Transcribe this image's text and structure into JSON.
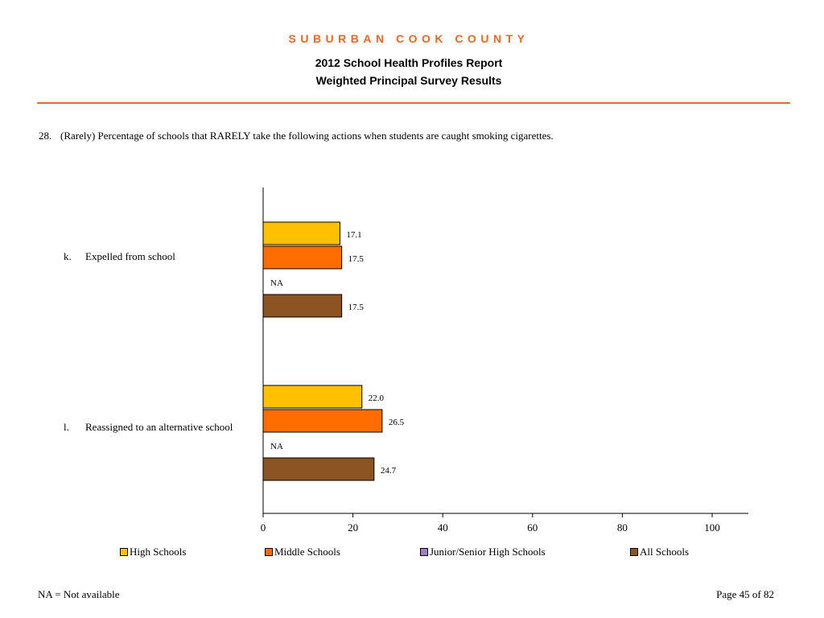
{
  "header": {
    "county": "SUBURBAN COOK COUNTY",
    "title_line1": "2012 School Health Profiles Report",
    "title_line2": "Weighted Principal Survey Results"
  },
  "question": {
    "number": "28.",
    "text": "(Rarely) Percentage of schools that RARELY take the following actions when students are caught smoking cigarettes."
  },
  "rows": [
    {
      "letter": "k.",
      "label": "Expelled from school"
    },
    {
      "letter": "l.",
      "label": "Reassigned to an alternative school"
    }
  ],
  "chart_data": {
    "type": "bar",
    "orientation": "horizontal",
    "categories": [
      "Expelled from school",
      "Reassigned to an alternative school"
    ],
    "series": [
      {
        "name": "High Schools",
        "color": "#ffc000",
        "values": [
          17.1,
          22.0
        ],
        "labels": [
          "17.1",
          "22.0"
        ]
      },
      {
        "name": "Middle Schools",
        "color": "#ff6d00",
        "values": [
          17.5,
          26.5
        ],
        "labels": [
          "17.5",
          "26.5"
        ]
      },
      {
        "name": "Junior/Senior High Schools",
        "color": "#a07cc4",
        "values": [
          null,
          null
        ],
        "labels": [
          "NA",
          "NA"
        ]
      },
      {
        "name": "All Schools",
        "color": "#8b5523",
        "values": [
          17.5,
          24.7
        ],
        "labels": [
          "17.5",
          "24.7"
        ]
      }
    ],
    "xlim": [
      0,
      100
    ],
    "xticks": [
      "0",
      "20",
      "40",
      "60",
      "80",
      "100"
    ],
    "grid": false,
    "legend_position": "bottom"
  },
  "footer": {
    "footnote": "NA = Not available",
    "page": "Page 45 of 82"
  }
}
